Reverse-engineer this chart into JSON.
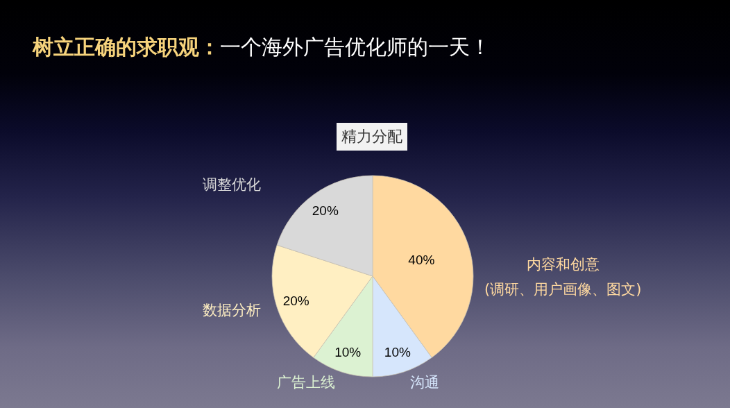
{
  "chart_data": {
    "type": "pie",
    "title": "树立正确的求职观：一个海外广告优化师的一天！",
    "subtitle": "精力分配",
    "categories": [
      "内容和创意 (调研、用户画像、图文)",
      "沟通",
      "广告上线",
      "数据分析",
      "调整优化"
    ],
    "values": [
      40,
      10,
      10,
      20,
      20
    ],
    "colors": [
      "#ffd9a0",
      "#d6e6fc",
      "#dcf2d2",
      "#ffefc2",
      "#d9d9d9"
    ],
    "value_labels": [
      "40%",
      "10%",
      "10%",
      "20%",
      "20%"
    ]
  }
}
